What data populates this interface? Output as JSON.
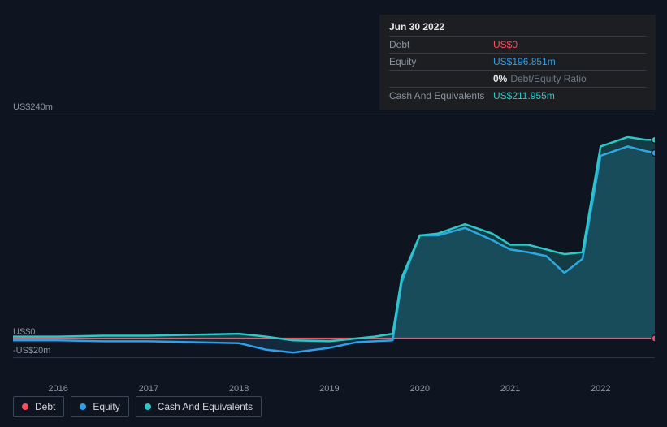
{
  "tooltip": {
    "date": "Jun 30 2022",
    "rows": [
      {
        "label": "Debt",
        "value": "US$0",
        "class": "debt"
      },
      {
        "label": "Equity",
        "value": "US$196.851m",
        "class": "equity"
      },
      {
        "label": "",
        "lead": "0%",
        "rest": "Debt/Equity Ratio",
        "class": "ratio"
      },
      {
        "label": "Cash And Equivalents",
        "value": "US$211.955m",
        "class": "cash"
      }
    ]
  },
  "chart": {
    "type": "area",
    "background_color": "#0e1520",
    "grid_color": "#2b3440",
    "y_ticks": [
      {
        "label": "US$240m",
        "value": 240
      },
      {
        "label": "US$0",
        "value": 0
      },
      {
        "label": "-US$20m",
        "value": -20
      }
    ],
    "ylim": [
      -20,
      240
    ],
    "x_ticks": [
      "2016",
      "2017",
      "2018",
      "2019",
      "2020",
      "2021",
      "2022"
    ],
    "xlim": [
      2015.5,
      2022.6
    ],
    "series": [
      {
        "name": "Debt",
        "color": "#ff4d5b",
        "line_width": 2,
        "fill_opacity": 0.1,
        "points": [
          [
            2015.5,
            0
          ],
          [
            2016,
            0
          ],
          [
            2016.5,
            0
          ],
          [
            2017,
            0
          ],
          [
            2017.5,
            0
          ],
          [
            2018,
            0
          ],
          [
            2018.5,
            0
          ],
          [
            2019,
            0
          ],
          [
            2019.5,
            0
          ],
          [
            2020,
            0
          ],
          [
            2020.5,
            0
          ],
          [
            2021,
            0
          ],
          [
            2021.5,
            0
          ],
          [
            2022,
            0
          ],
          [
            2022.5,
            0
          ],
          [
            2022.6,
            0
          ]
        ]
      },
      {
        "name": "Equity",
        "color": "#2f9fe8",
        "line_width": 2.5,
        "fill_opacity": 0.15,
        "points": [
          [
            2015.5,
            -2
          ],
          [
            2016,
            -2
          ],
          [
            2016.5,
            -3
          ],
          [
            2017,
            -3
          ],
          [
            2017.5,
            -4
          ],
          [
            2018,
            -5
          ],
          [
            2018.3,
            -12
          ],
          [
            2018.6,
            -15
          ],
          [
            2019,
            -10
          ],
          [
            2019.3,
            -4
          ],
          [
            2019.5,
            -3
          ],
          [
            2019.7,
            -2
          ],
          [
            2019.8,
            60
          ],
          [
            2020,
            110
          ],
          [
            2020.2,
            110
          ],
          [
            2020.5,
            118
          ],
          [
            2020.8,
            105
          ],
          [
            2021,
            95
          ],
          [
            2021.2,
            92
          ],
          [
            2021.4,
            88
          ],
          [
            2021.6,
            70
          ],
          [
            2021.8,
            85
          ],
          [
            2022,
            195
          ],
          [
            2022.3,
            205
          ],
          [
            2022.5,
            200
          ],
          [
            2022.6,
            198
          ]
        ]
      },
      {
        "name": "Cash And Equivalents",
        "color": "#2ec7c5",
        "line_width": 2.5,
        "fill_opacity": 0.22,
        "points": [
          [
            2015.5,
            2
          ],
          [
            2016,
            2
          ],
          [
            2016.5,
            3
          ],
          [
            2017,
            3
          ],
          [
            2017.5,
            4
          ],
          [
            2018,
            5
          ],
          [
            2018.3,
            2
          ],
          [
            2018.6,
            -2
          ],
          [
            2019,
            -3
          ],
          [
            2019.3,
            0
          ],
          [
            2019.5,
            2
          ],
          [
            2019.7,
            5
          ],
          [
            2019.8,
            65
          ],
          [
            2020,
            110
          ],
          [
            2020.2,
            112
          ],
          [
            2020.5,
            122
          ],
          [
            2020.8,
            112
          ],
          [
            2021,
            100
          ],
          [
            2021.2,
            100
          ],
          [
            2021.4,
            95
          ],
          [
            2021.6,
            90
          ],
          [
            2021.8,
            92
          ],
          [
            2022,
            205
          ],
          [
            2022.3,
            215
          ],
          [
            2022.5,
            212
          ],
          [
            2022.6,
            212
          ]
        ]
      }
    ],
    "end_marker": {
      "x": 2022.6,
      "series": [
        "Debt",
        "Equity",
        "Cash And Equivalents"
      ]
    }
  },
  "legend": [
    {
      "label": "Debt",
      "color": "#ff4d5b"
    },
    {
      "label": "Equity",
      "color": "#2f9fe8"
    },
    {
      "label": "Cash And Equivalents",
      "color": "#2ec7c5"
    }
  ]
}
